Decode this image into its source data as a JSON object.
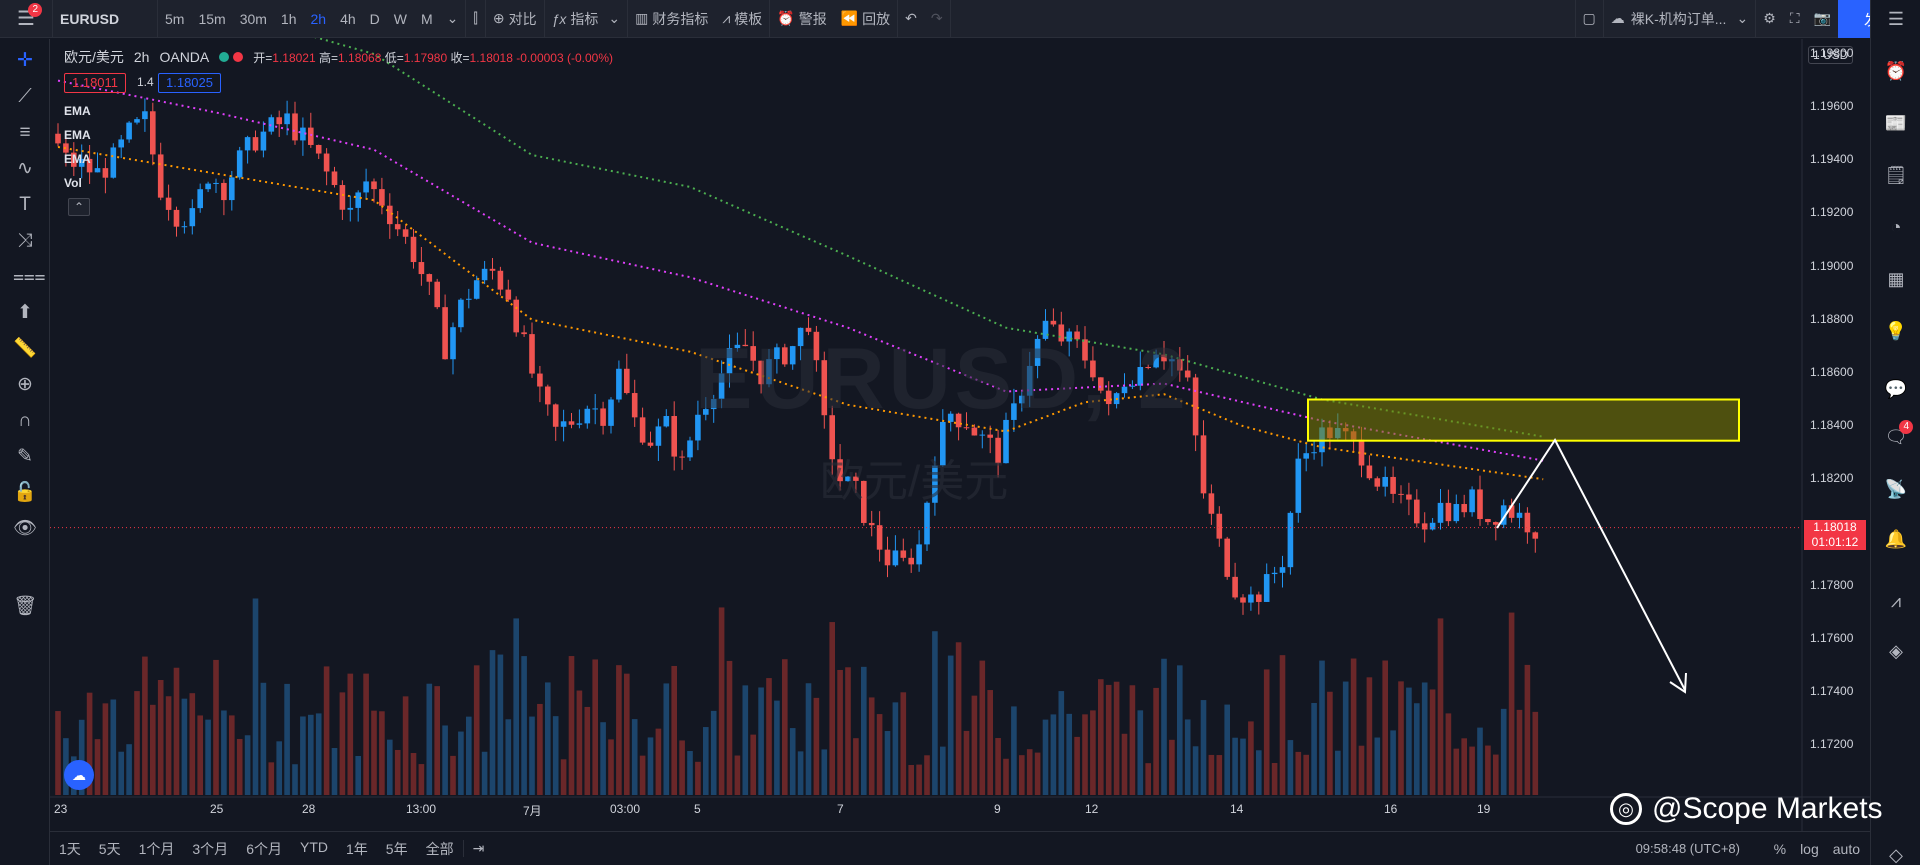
{
  "header": {
    "menu_badge": "2",
    "symbol": "EURUSD",
    "intervals": [
      "5m",
      "15m",
      "30m",
      "1h",
      "2h",
      "4h",
      "D",
      "W",
      "M"
    ],
    "active_interval": "2h",
    "compare": "对比",
    "indicators": "指标",
    "financials": "财务指标",
    "templates": "模板",
    "alerts": "警报",
    "replay": "回放",
    "layout_name": "裸K-机构订单...",
    "publish": "发表"
  },
  "legend": {
    "title": "欧元/美元",
    "interval": "2h",
    "source": "OANDA",
    "open_label": "开=",
    "open": "1.18021",
    "high_label": "高=",
    "high": "1.18068",
    "low_label": "低=",
    "low": "1.17980",
    "close_label": "收=",
    "close": "1.18018",
    "change": "-0.00003 (-0.00%)",
    "bid": "1.18011",
    "spread": "1.4",
    "ask": "1.18025",
    "indicators": [
      "EMA",
      "EMA",
      "EMA",
      "Vol"
    ]
  },
  "watermark": {
    "symbol": "EURUSD, 2",
    "description": "欧元/美元"
  },
  "price_axis": {
    "currency": "1 USD",
    "labels": [
      "1.19800",
      "1.19600",
      "1.19400",
      "1.19200",
      "1.19000",
      "1.18800",
      "1.18600",
      "1.18400",
      "1.18200",
      "1.17800",
      "1.17600",
      "1.17400",
      "1.17200"
    ],
    "current_price": "1.18018",
    "countdown": "01:01:12"
  },
  "time_axis": {
    "labels": [
      "23",
      "25",
      "28",
      "13:00",
      "7月",
      "03:00",
      "5",
      "7",
      "9",
      "12",
      "14",
      "16",
      "19"
    ]
  },
  "bottom": {
    "ranges": [
      "1天",
      "5天",
      "1个月",
      "3个月",
      "6个月",
      "YTD",
      "1年",
      "5年",
      "全部"
    ],
    "clock": "09:58:48 (UTC+8)",
    "percent": "%",
    "log": "log",
    "auto": "auto"
  },
  "right_badge": "4",
  "branding": "@Scope Markets",
  "colors": {
    "up": "#2196f3",
    "down": "#ef5350",
    "ema_fast": "#ff9800",
    "ema_mid": "#e040fb",
    "ema_slow": "#4caf50",
    "zone_fill": "#808000",
    "zone_border": "#ffff00",
    "arrow": "#ffffff"
  },
  "chart_data": {
    "type": "candlestick",
    "symbol": "EURUSD",
    "interval": "2h",
    "ylim": [
      1.171,
      1.199
    ],
    "close_path": [
      [
        0,
        1.195
      ],
      [
        2,
        1.194
      ],
      [
        4,
        1.1938
      ],
      [
        6,
        1.1935
      ],
      [
        8,
        1.194
      ],
      [
        10,
        1.195
      ],
      [
        12,
        1.1955
      ],
      [
        14,
        1.193
      ],
      [
        16,
        1.192
      ],
      [
        18,
        1.1918
      ],
      [
        20,
        1.1935
      ],
      [
        22,
        1.193
      ],
      [
        24,
        1.194
      ],
      [
        26,
        1.1948
      ],
      [
        28,
        1.1952
      ],
      [
        30,
        1.1955
      ],
      [
        32,
        1.1948
      ],
      [
        34,
        1.194
      ],
      [
        36,
        1.193
      ],
      [
        38,
        1.192
      ],
      [
        40,
        1.1932
      ],
      [
        42,
        1.1925
      ],
      [
        44,
        1.1915
      ],
      [
        46,
        1.1905
      ],
      [
        48,
        1.189
      ],
      [
        50,
        1.187
      ],
      [
        52,
        1.1885
      ],
      [
        54,
        1.1895
      ],
      [
        56,
        1.1898
      ],
      [
        58,
        1.189
      ],
      [
        60,
        1.187
      ],
      [
        62,
        1.185
      ],
      [
        64,
        1.1838
      ],
      [
        66,
        1.1842
      ],
      [
        68,
        1.1848
      ],
      [
        70,
        1.1845
      ],
      [
        72,
        1.186
      ],
      [
        74,
        1.1842
      ],
      [
        76,
        1.1835
      ],
      [
        78,
        1.184
      ],
      [
        80,
        1.1825
      ],
      [
        82,
        1.1845
      ],
      [
        84,
        1.1855
      ],
      [
        86,
        1.1865
      ],
      [
        88,
        1.187
      ],
      [
        90,
        1.186
      ],
      [
        92,
        1.1865
      ],
      [
        94,
        1.187
      ],
      [
        96,
        1.188
      ],
      [
        98,
        1.184
      ],
      [
        100,
        1.182
      ],
      [
        102,
        1.1815
      ],
      [
        104,
        1.18
      ],
      [
        106,
        1.179
      ],
      [
        108,
        1.1788
      ],
      [
        110,
        1.1795
      ],
      [
        112,
        1.183
      ],
      [
        114,
        1.1845
      ],
      [
        116,
        1.1842
      ],
      [
        118,
        1.1835
      ],
      [
        120,
        1.183
      ],
      [
        122,
        1.1845
      ],
      [
        124,
        1.1865
      ],
      [
        126,
        1.1878
      ],
      [
        128,
        1.1873
      ],
      [
        130,
        1.187
      ],
      [
        132,
        1.1862
      ],
      [
        134,
        1.1845
      ],
      [
        136,
        1.1858
      ],
      [
        138,
        1.1862
      ],
      [
        140,
        1.187
      ],
      [
        142,
        1.1865
      ],
      [
        144,
        1.1855
      ],
      [
        146,
        1.1815
      ],
      [
        148,
        1.1795
      ],
      [
        150,
        1.178
      ],
      [
        152,
        1.1775
      ],
      [
        154,
        1.178
      ],
      [
        156,
        1.179
      ],
      [
        158,
        1.1825
      ],
      [
        160,
        1.1835
      ],
      [
        162,
        1.1838
      ],
      [
        164,
        1.1835
      ],
      [
        166,
        1.183
      ],
      [
        168,
        1.182
      ],
      [
        170,
        1.1812
      ],
      [
        172,
        1.1808
      ],
      [
        174,
        1.1805
      ],
      [
        176,
        1.181
      ],
      [
        178,
        1.1808
      ],
      [
        180,
        1.1812
      ],
      [
        182,
        1.1805
      ],
      [
        184,
        1.181
      ],
      [
        186,
        1.1806
      ],
      [
        188,
        1.18018
      ]
    ],
    "ema": {
      "fast": [
        [
          0,
          1.1945
        ],
        [
          20,
          1.1935
        ],
        [
          40,
          1.1925
        ],
        [
          60,
          1.188
        ],
        [
          80,
          1.1868
        ],
        [
          100,
          1.1848
        ],
        [
          120,
          1.1838
        ],
        [
          130,
          1.1849
        ],
        [
          140,
          1.1852
        ],
        [
          150,
          1.184
        ],
        [
          160,
          1.1832
        ],
        [
          188,
          1.182
        ]
      ],
      "mid": [
        [
          0,
          1.197
        ],
        [
          20,
          1.1958
        ],
        [
          40,
          1.1944
        ],
        [
          60,
          1.1909
        ],
        [
          80,
          1.1896
        ],
        [
          100,
          1.1877
        ],
        [
          120,
          1.1853
        ],
        [
          140,
          1.1856
        ],
        [
          160,
          1.1842
        ],
        [
          188,
          1.1827
        ]
      ],
      "slow": [
        [
          0,
          1.201
        ],
        [
          20,
          1.1997
        ],
        [
          40,
          1.198
        ],
        [
          60,
          1.1942
        ],
        [
          80,
          1.193
        ],
        [
          100,
          1.1904
        ],
        [
          120,
          1.1877
        ],
        [
          140,
          1.1867
        ],
        [
          160,
          1.185
        ],
        [
          188,
          1.1836
        ]
      ]
    },
    "annotations": [
      {
        "type": "rectangle",
        "price_top": 1.185,
        "price_bottom": 1.18345
      },
      {
        "type": "arrow",
        "note": "projected move down from zone"
      }
    ]
  }
}
